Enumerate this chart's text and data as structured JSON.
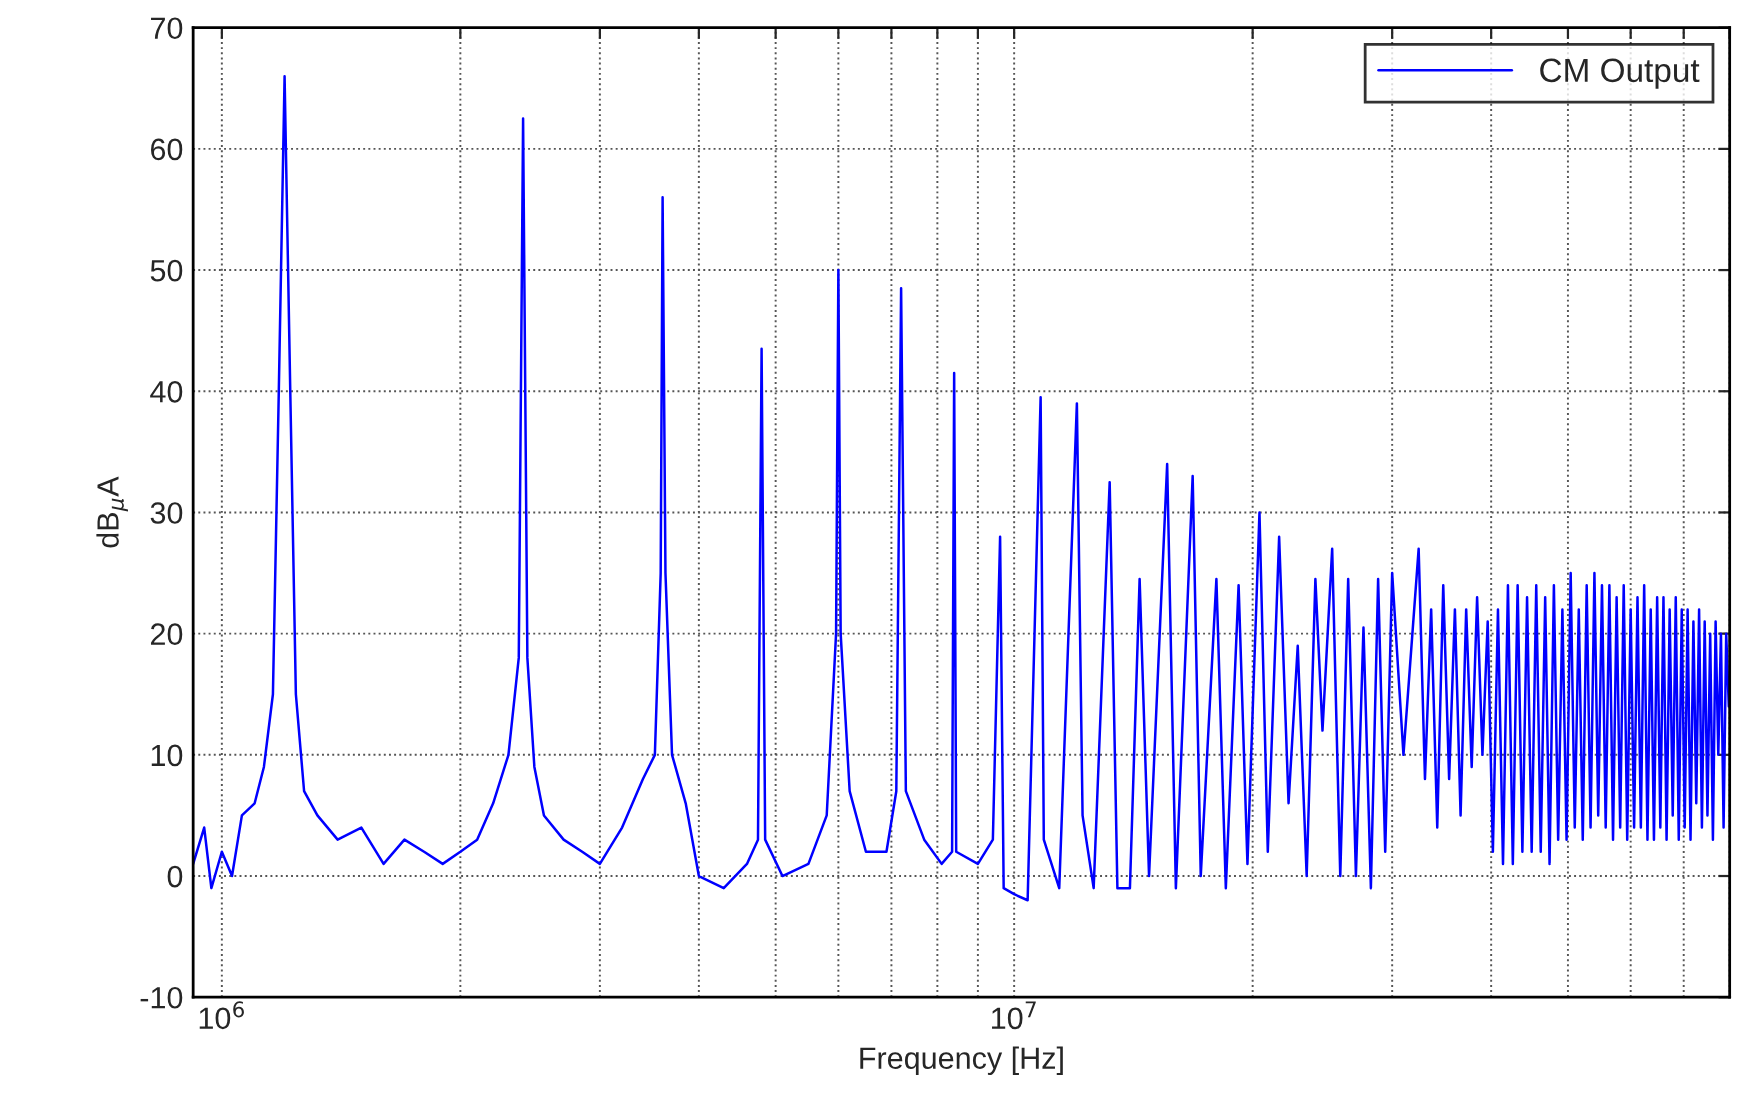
{
  "chart_data": {
    "type": "line",
    "xlabel": "Frequency [Hz]",
    "ylabel": "dB$_{μ}$A",
    "log": "x",
    "grid": true,
    "legend": "top right",
    "marker": "none",
    "line_style": "solid",
    "xlim": [
      920000,
      80000000
    ],
    "ylim": [
      -10,
      70
    ],
    "xticks": [
      {
        "value": 1000000,
        "label": "10$^{6}$"
      },
      {
        "value": 2000000,
        "label": null
      },
      {
        "value": 3000000,
        "label": null
      },
      {
        "value": 4000000,
        "label": null
      },
      {
        "value": 5000000,
        "label": null
      },
      {
        "value": 6000000,
        "label": null
      },
      {
        "value": 7000000,
        "label": null
      },
      {
        "value": 8000000,
        "label": null
      },
      {
        "value": 9000000,
        "label": null
      },
      {
        "value": 10000000,
        "label": "10$^{7}$"
      },
      {
        "value": 20000000,
        "label": null
      },
      {
        "value": 30000000,
        "label": null
      },
      {
        "value": 40000000,
        "label": null
      },
      {
        "value": 50000000,
        "label": null
      },
      {
        "value": 60000000,
        "label": null
      },
      {
        "value": 70000000,
        "label": null
      },
      {
        "value": 80000000,
        "label": null
      }
    ],
    "yticks": [
      -10,
      0,
      10,
      20,
      30,
      40,
      50,
      60,
      70
    ],
    "series": [
      {
        "name": "CM Output",
        "color": "#0000ff",
        "x": [
          920000,
          950000,
          970000,
          1000000,
          1030000,
          1060000,
          1100000,
          1130000,
          1160000,
          1180000,
          1200000,
          1220000,
          1240000,
          1270000,
          1320000,
          1400000,
          1500000,
          1600000,
          1700000,
          1800000,
          1900000,
          2000000,
          2100000,
          2200000,
          2300000,
          2370000,
          2400000,
          2430000,
          2480000,
          2550000,
          2700000,
          2850000,
          3000000,
          3200000,
          3400000,
          3520000,
          3580000,
          3600000,
          3630000,
          3700000,
          3850000,
          4000000,
          4300000,
          4600000,
          4750000,
          4800000,
          4850000,
          5100000,
          5500000,
          5800000,
          5960000,
          6000000,
          6040000,
          6200000,
          6500000,
          6900000,
          7100000,
          7200000,
          7300000,
          7700000,
          8100000,
          8350000,
          8400000,
          8450000,
          9000000,
          9400000,
          9600000,
          9700000,
          10000000,
          10400000,
          10800000,
          10900000,
          11400000,
          12000000,
          12200000,
          12600000,
          13200000,
          13500000,
          14000000,
          14400000,
          14800000,
          15600000,
          16000000,
          16800000,
          17200000,
          18000000,
          18500000,
          19200000,
          19700000,
          20400000,
          20900000,
          21600000,
          22200000,
          22800000,
          23400000,
          24000000,
          24500000,
          25200000,
          25800000,
          26400000,
          27000000,
          27600000,
          28200000,
          28800000,
          29400000,
          30000000,
          31000000,
          32400000,
          33000000,
          33600000,
          34200000,
          34800000,
          35400000,
          36000000,
          36600000,
          37200000,
          37800000,
          38400000,
          39000000,
          39600000,
          40200000,
          40800000,
          41400000,
          42000000,
          42600000,
          43200000,
          43800000,
          44400000,
          45000000,
          45600000,
          46200000,
          46800000,
          47400000,
          48000000,
          48600000,
          49200000,
          49800000,
          50400000,
          51000000,
          51600000,
          52200000,
          52800000,
          53400000,
          54000000,
          54600000,
          55200000,
          55800000,
          56400000,
          57000000,
          57600000,
          58200000,
          58800000,
          59400000,
          60000000,
          60600000,
          61200000,
          61800000,
          62400000,
          63000000,
          63600000,
          64200000,
          64800000,
          65400000,
          66000000,
          66600000,
          67200000,
          67800000,
          68400000,
          69000000,
          69600000,
          70200000,
          70800000,
          71400000,
          72000000,
          72600000,
          73200000,
          73800000,
          74400000,
          75000000,
          75600000,
          76200000,
          76800000,
          77400000,
          78000000,
          78600000,
          79200000,
          79800000
        ],
        "values": [
          1,
          4,
          -1,
          2,
          0,
          5,
          6,
          9,
          15,
          40,
          66,
          40,
          15,
          7,
          5,
          3,
          4,
          1,
          3,
          2,
          1,
          2,
          3,
          6,
          10,
          18,
          62.5,
          18,
          9,
          5,
          3,
          2,
          1,
          4,
          8,
          10,
          25,
          56,
          25,
          10,
          6,
          0,
          -1,
          1,
          3,
          43.5,
          3,
          0,
          1,
          5,
          20,
          50,
          20,
          7,
          2,
          2,
          7,
          48.5,
          7,
          3,
          1,
          2,
          41.5,
          2,
          1,
          3,
          28,
          -1,
          -1.5,
          -2,
          39.5,
          3,
          -1,
          39,
          5,
          -1,
          32.5,
          -1,
          -1,
          24.5,
          0,
          34,
          -1,
          33,
          0,
          24.5,
          -1,
          24,
          1,
          30,
          2,
          28,
          6,
          19,
          0,
          24.5,
          12,
          27,
          0,
          24.5,
          0,
          20.5,
          -1,
          24.5,
          2,
          25,
          10,
          27,
          8,
          22,
          4,
          24,
          8,
          22,
          5,
          22,
          9,
          23,
          10,
          21,
          2,
          22,
          1,
          24,
          1,
          24,
          2,
          23,
          2,
          24,
          2,
          23,
          1,
          24,
          3,
          22,
          3,
          25,
          4,
          22,
          3,
          24,
          4,
          25,
          5,
          24,
          4,
          24,
          3,
          23,
          4,
          24,
          3,
          22,
          4,
          23,
          4,
          24,
          3,
          22,
          3,
          23,
          4,
          23,
          3,
          22,
          5,
          23,
          3,
          22,
          4,
          22,
          3,
          21,
          6,
          22,
          4,
          21,
          5,
          20,
          3,
          21,
          10,
          20,
          4,
          20,
          14
        ]
      }
    ]
  }
}
